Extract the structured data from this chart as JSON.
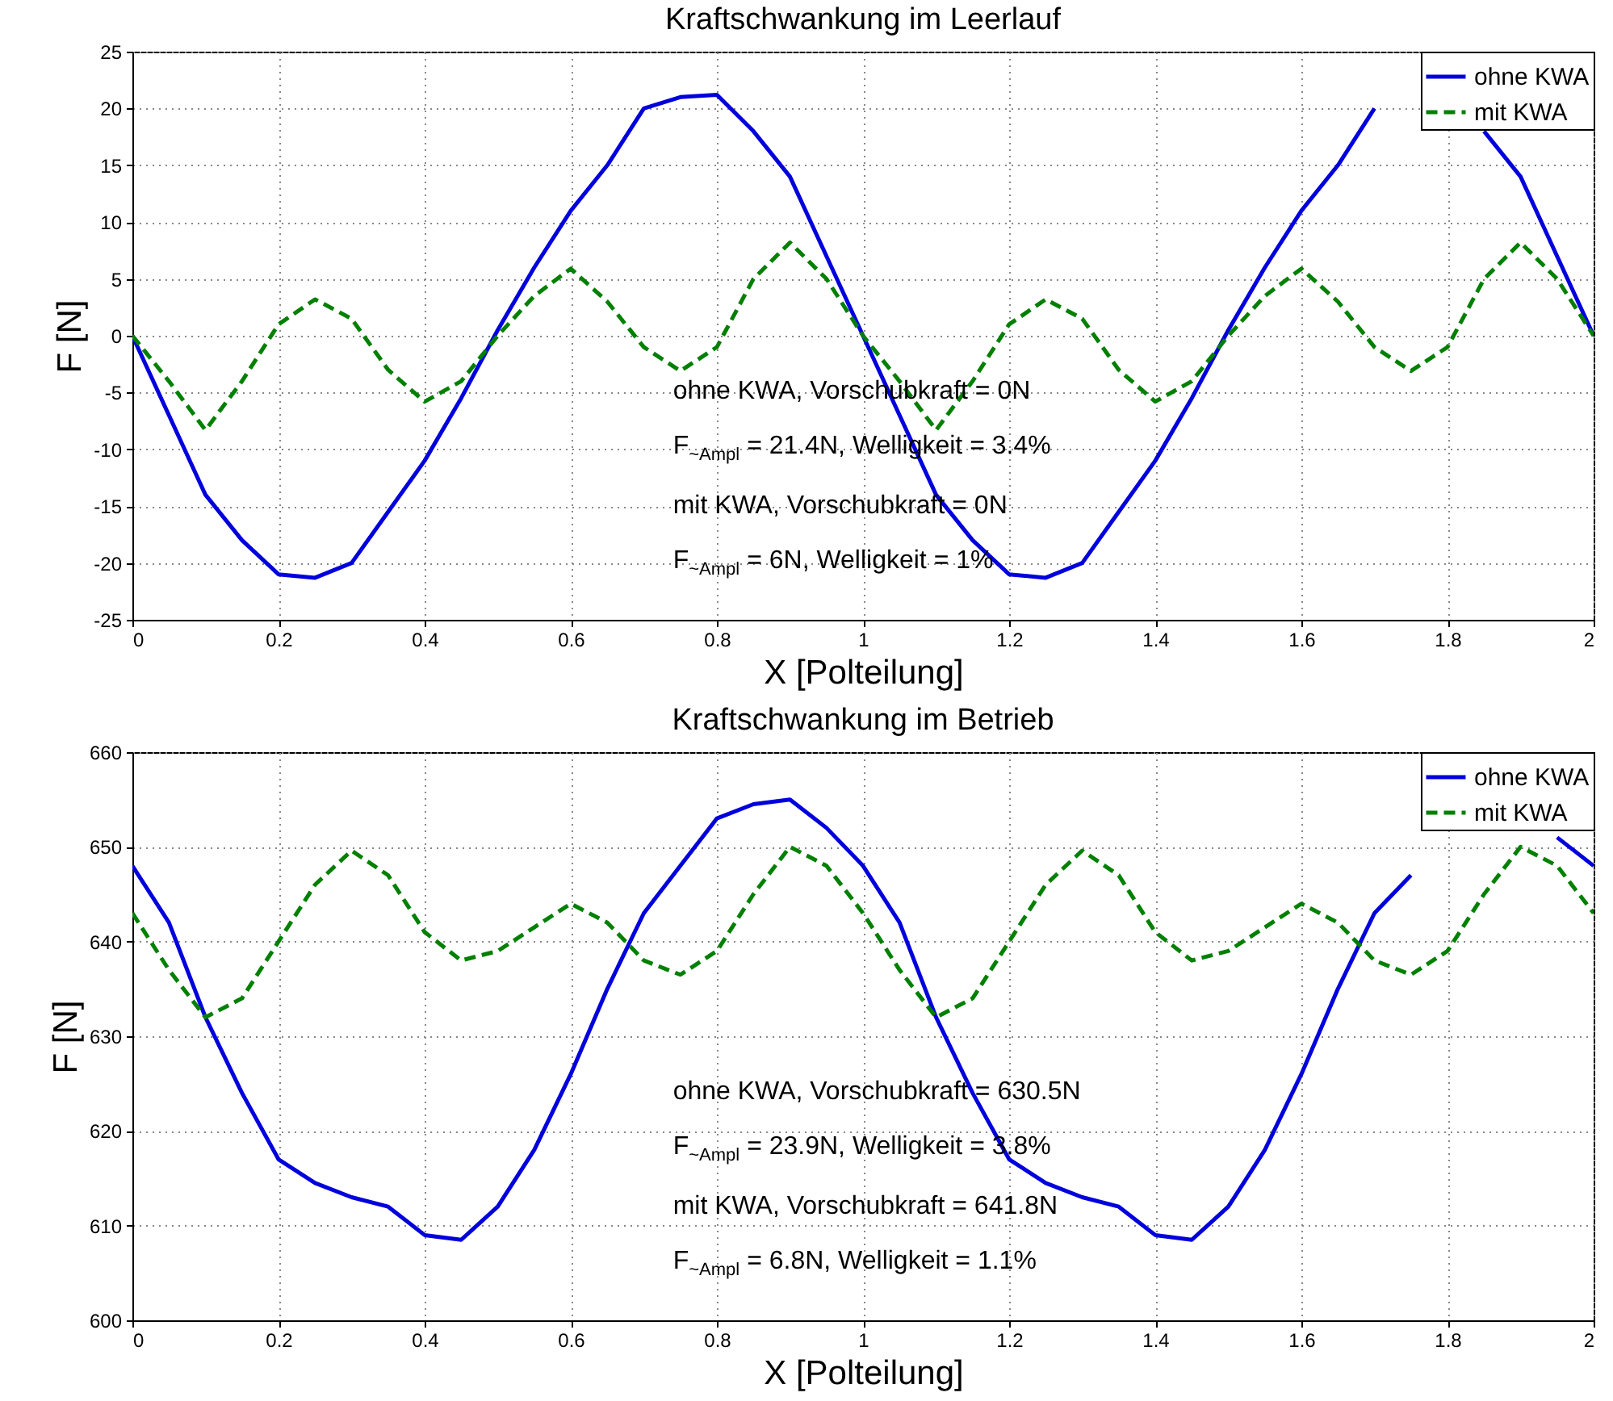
{
  "chart_data": [
    {
      "type": "line",
      "title": "Kraftschwankung im Leerlauf",
      "xlabel": "X [Polteilung]",
      "ylabel": "F [N]",
      "x": [
        0,
        0.05,
        0.1,
        0.15,
        0.2,
        0.25,
        0.3,
        0.35,
        0.4,
        0.45,
        0.5,
        0.55,
        0.6,
        0.65,
        0.7,
        0.75,
        0.8,
        0.85,
        0.9,
        0.95,
        1,
        1.05,
        1.1,
        1.15,
        1.2,
        1.25,
        1.3,
        1.35,
        1.4,
        1.45,
        1.5,
        1.55,
        1.6,
        1.65,
        1.7,
        1.75,
        1.8,
        1.85,
        1.9,
        1.95,
        2
      ],
      "series": [
        {
          "name": "ohne KWA",
          "color": "#0000dd",
          "line_style": "solid",
          "values": [
            0,
            -7,
            -14,
            -18,
            -21,
            -21.3,
            -20,
            -15.5,
            -11,
            -5.5,
            0.5,
            6,
            11,
            15,
            20,
            21,
            21.2,
            18,
            14,
            7,
            0,
            -7,
            -14,
            -18,
            -21,
            -21.3,
            -20,
            -15.5,
            -11,
            -5.5,
            0.5,
            6,
            11,
            15,
            20,
            null,
            null,
            18,
            14,
            7,
            0
          ]
        },
        {
          "name": "mit KWA",
          "color": "#008000",
          "line_style": "dashed",
          "values": [
            0,
            -4,
            -8.3,
            -4,
            1,
            3.2,
            1.5,
            -3,
            -5.8,
            -4,
            0,
            3.5,
            5.9,
            3,
            -1,
            -3.1,
            -1,
            5,
            8.2,
            5,
            0,
            -4,
            -8.3,
            -4,
            1,
            3.2,
            1.5,
            -3,
            -5.8,
            -4,
            0,
            3.5,
            5.9,
            3,
            -1,
            -3.1,
            -1,
            5,
            8.2,
            5,
            0
          ]
        }
      ],
      "xlim": [
        0,
        2
      ],
      "xticks": [
        0,
        0.2,
        0.4,
        0.6,
        0.8,
        1,
        1.2,
        1.4,
        1.6,
        1.8,
        2
      ],
      "ylim": [
        -25,
        25
      ],
      "yticks": [
        -25,
        -20,
        -15,
        -10,
        -5,
        0,
        5,
        10,
        15,
        20,
        25
      ],
      "grid": true,
      "legend": "top right",
      "annotations": [
        "ohne KWA, Vorschubkraft = 0N",
        "F$_{~Ampl}$ = 21.4N, Welligkeit = 3.4%",
        "mit KWA, Vorschubkraft = 0N",
        "F$_{~Ampl}$ = 6N, Welligkeit = 1%"
      ]
    },
    {
      "type": "line",
      "title": "Kraftschwankung im Betrieb",
      "xlabel": "X [Polteilung]",
      "ylabel": "F [N]",
      "x": [
        0,
        0.05,
        0.1,
        0.15,
        0.2,
        0.25,
        0.3,
        0.35,
        0.4,
        0.45,
        0.5,
        0.55,
        0.6,
        0.65,
        0.7,
        0.75,
        0.8,
        0.85,
        0.9,
        0.95,
        1,
        1.05,
        1.1,
        1.15,
        1.2,
        1.25,
        1.3,
        1.35,
        1.4,
        1.45,
        1.5,
        1.55,
        1.6,
        1.65,
        1.7,
        1.75,
        1.8,
        1.85,
        1.9,
        1.95,
        2
      ],
      "series": [
        {
          "name": "ohne KWA",
          "color": "#0000dd",
          "line_style": "solid",
          "values": [
            648,
            642,
            632,
            624,
            617,
            614.5,
            613,
            612,
            609,
            608.5,
            612,
            618,
            626,
            635,
            643,
            648,
            653,
            654.5,
            655,
            652,
            648,
            642,
            632,
            624,
            617,
            614.5,
            613,
            612,
            609,
            608.5,
            612,
            618,
            626,
            635,
            643,
            647,
            null,
            null,
            null,
            651,
            648
          ]
        },
        {
          "name": "mit KWA",
          "color": "#008000",
          "line_style": "dashed",
          "values": [
            643,
            637,
            632,
            634,
            640,
            646,
            649.6,
            647,
            641,
            638,
            639,
            641.5,
            644,
            642,
            638,
            636.5,
            639,
            645,
            650,
            648,
            643,
            637,
            632,
            634,
            640,
            646,
            649.6,
            647,
            641,
            638,
            639,
            641.5,
            644,
            642,
            638,
            636.5,
            639,
            645,
            650,
            648,
            643
          ]
        }
      ],
      "xlim": [
        0,
        2
      ],
      "xticks": [
        0,
        0.2,
        0.4,
        0.6,
        0.8,
        1,
        1.2,
        1.4,
        1.6,
        1.8,
        2
      ],
      "ylim": [
        600,
        660
      ],
      "yticks": [
        600,
        610,
        620,
        630,
        640,
        650,
        660
      ],
      "grid": true,
      "legend": "top right",
      "annotations": [
        "ohne KWA, Vorschubkraft = 630.5N",
        "F$_{~Ampl}$ = 23.9N, Welligkeit = 3.8%",
        "mit KWA, Vorschubkraft = 641.8N",
        "F$_{~Ampl}$ = 6.8N, Welligkeit = 1.1%"
      ]
    }
  ]
}
